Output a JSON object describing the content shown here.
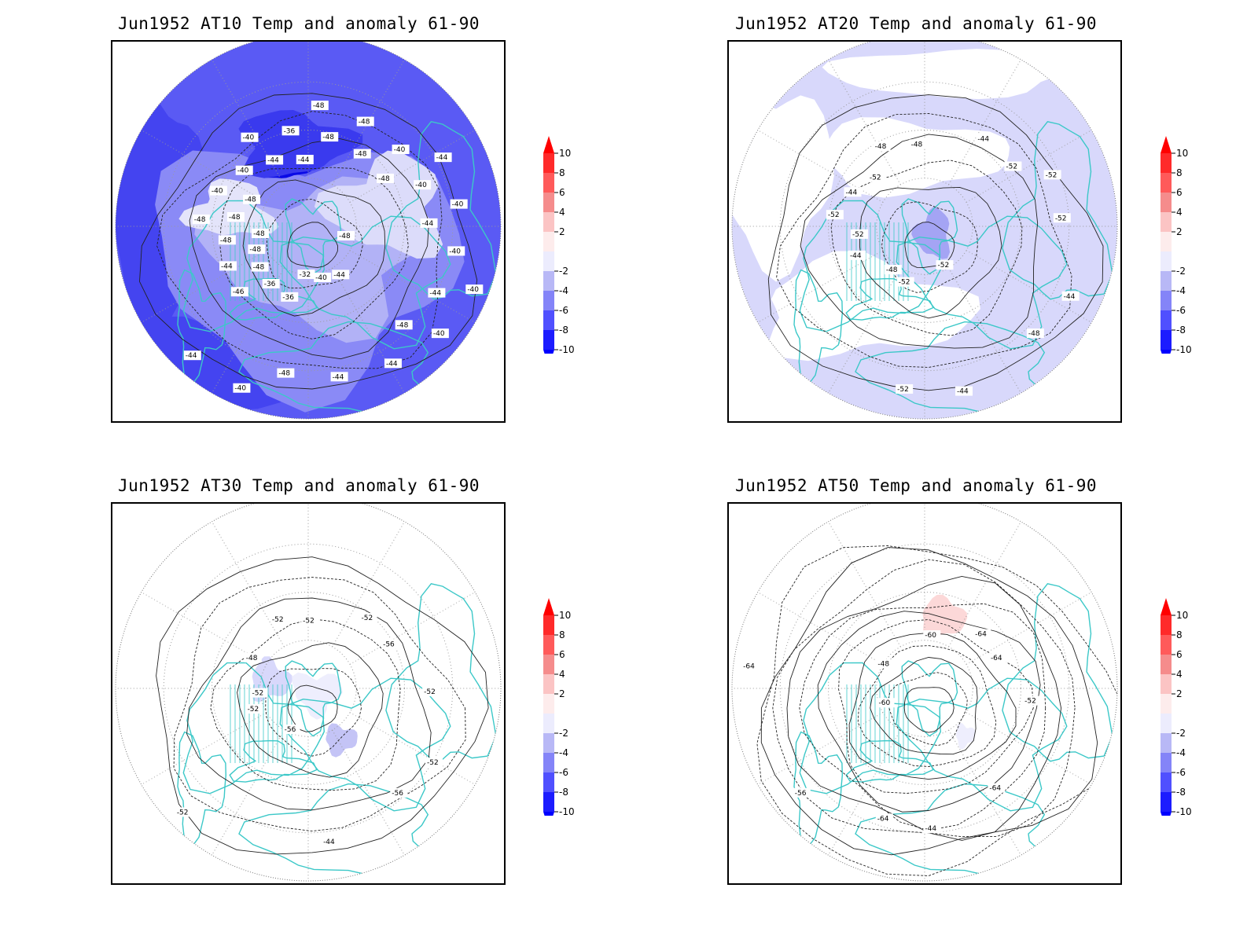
{
  "colors": {
    "coast": "#3cc8c8",
    "contour": "#222222",
    "anomaly_scale": [
      "#0000ff",
      "#3434ff",
      "#6a6aff",
      "#9c9cf4",
      "#d8d8fb",
      "#ffffff",
      "#fcd8d8",
      "#f49c9c",
      "#ff6a6a",
      "#ff3434",
      "#ff0000"
    ]
  },
  "colorbar": {
    "labels": [
      "10",
      "8",
      "6",
      "4",
      "2",
      "-2",
      "-4",
      "-6",
      "-8",
      "-10"
    ]
  },
  "panels": [
    {
      "title": "Jun1952 AT10 Temp and anomaly 61-90",
      "anomaly_level": "strong-negative",
      "contour_labels": [
        "-48",
        "-46",
        "-48",
        "-44",
        "-48",
        "-44",
        "-36",
        "-40",
        "-40",
        "-44",
        "-48",
        "-40",
        "-40",
        "-40",
        "-36",
        "-36",
        "-40",
        "-48",
        "-40",
        "-32",
        "-40",
        "-40",
        "-48",
        "-48",
        "-44",
        "-48",
        "-40",
        "-40",
        "-44",
        "-44",
        "-48",
        "-48",
        "-44",
        "-48",
        "-44",
        "-44",
        "-44",
        "-48",
        "-48",
        "-48",
        "-48"
      ]
    },
    {
      "title": "Jun1952 AT20 Temp and anomaly 61-90",
      "anomaly_level": "weak-negative",
      "contour_labels": [
        "-52",
        "-52",
        "-52",
        "-52",
        "-48",
        "-44",
        "-44",
        "-44",
        "-44",
        "-44",
        "-52",
        "-48",
        "-48",
        "-48",
        "-52",
        "-52",
        "-52",
        "-52"
      ]
    },
    {
      "title": "Jun1952 AT30 Temp and anomaly 61-90",
      "anomaly_level": "near-zero",
      "contour_labels": [
        "-56",
        "-52",
        "-52",
        "-52",
        "-52",
        "-44",
        "-48",
        "-52",
        "-52",
        "-52",
        "-56",
        "-52",
        "-56"
      ]
    },
    {
      "title": "Jun1952 AT50 Temp and anomaly 61-90",
      "anomaly_level": "near-zero-warm-spot",
      "contour_labels": [
        "-60",
        "-64",
        "-44",
        "-48",
        "-52",
        "-56",
        "-60",
        "-64",
        "-64",
        "-64",
        "-64"
      ]
    }
  ]
}
